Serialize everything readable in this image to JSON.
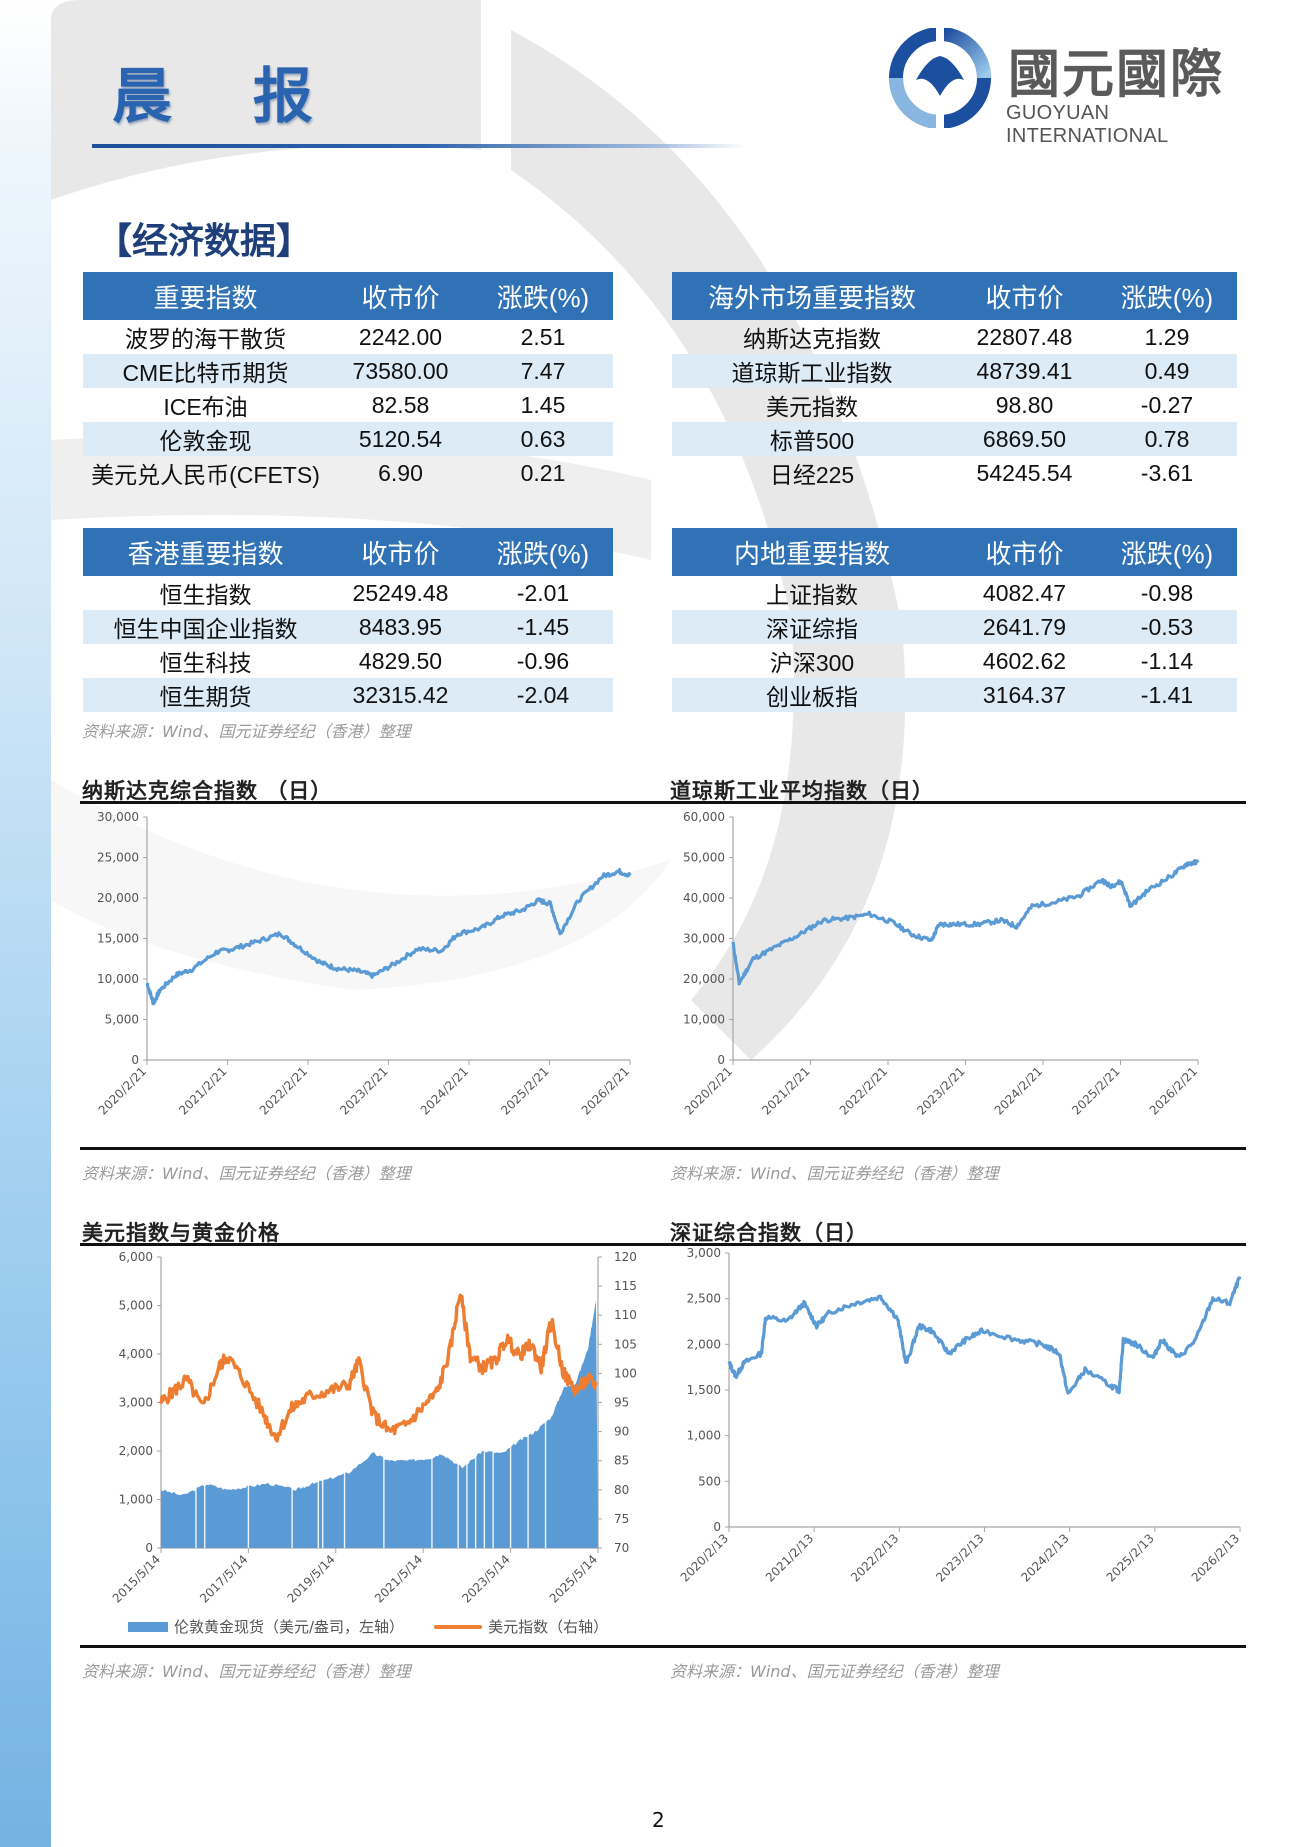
{
  "header": {
    "title": "晨 报",
    "logo_cn": "國元國際",
    "logo_en": "GUOYUAN INTERNATIONAL"
  },
  "section_title": "【经济数据】",
  "tables": {
    "key_indices": {
      "headers": [
        "重要指数",
        "收市价",
        "涨跌(%)"
      ],
      "rows": [
        [
          "波罗的海干散货",
          "2242.00",
          "2.51"
        ],
        [
          "CME比特币期货",
          "73580.00",
          "7.47"
        ],
        [
          "ICE布油",
          "82.58",
          "1.45"
        ],
        [
          "伦敦金现",
          "5120.54",
          "0.63"
        ],
        [
          "美元兑人民币(CFETS)",
          "6.90",
          "0.21"
        ]
      ]
    },
    "overseas": {
      "headers": [
        "海外市场重要指数",
        "收市价",
        "涨跌(%)"
      ],
      "rows": [
        [
          "纳斯达克指数",
          "22807.48",
          "1.29"
        ],
        [
          "道琼斯工业指数",
          "48739.41",
          "0.49"
        ],
        [
          "美元指数",
          "98.80",
          "-0.27"
        ],
        [
          "标普500",
          "6869.50",
          "0.78"
        ],
        [
          "日经225",
          "54245.54",
          "-3.61"
        ]
      ]
    },
    "hongkong": {
      "headers": [
        "香港重要指数",
        "收市价",
        "涨跌(%)"
      ],
      "rows": [
        [
          "恒生指数",
          "25249.48",
          "-2.01"
        ],
        [
          "恒生中国企业指数",
          "8483.95",
          "-1.45"
        ],
        [
          "恒生科技",
          "4829.50",
          "-0.96"
        ],
        [
          "恒生期货",
          "32315.42",
          "-2.04"
        ]
      ]
    },
    "mainland": {
      "headers": [
        "内地重要指数",
        "收市价",
        "涨跌(%)"
      ],
      "rows": [
        [
          "上证指数",
          "4082.47",
          "-0.98"
        ],
        [
          "深证综指",
          "2641.79",
          "-0.53"
        ],
        [
          "沪深300",
          "4602.62",
          "-1.14"
        ],
        [
          "创业板指",
          "3164.37",
          "-1.41"
        ]
      ]
    }
  },
  "source_note": "资料来源：Wind、国元证券经纪（香港）整理",
  "page_number": "2",
  "colors": {
    "table_header": "#3072b5",
    "table_alt_row": "#ddebf7",
    "line_blue": "#5b9bd5",
    "line_orange": "#ed7d31",
    "title_blue": "#2a64b0"
  },
  "chart_data": [
    {
      "type": "line",
      "title": "纳斯达克综合指数 （日）",
      "xlabel": "",
      "ylabel": "",
      "x_ticks": [
        "2020/2/21",
        "2021/2/21",
        "2022/2/21",
        "2023/2/21",
        "2024/2/21",
        "2025/2/21",
        "2026/2/21"
      ],
      "y_ticks": [
        "0",
        "5,000",
        "10,000",
        "15,000",
        "20,000",
        "25,000",
        "30,000"
      ],
      "ylim": [
        0,
        30000
      ],
      "grid": false,
      "series": [
        {
          "name": "纳斯达克综合指数",
          "color": "#5b9bd5",
          "x": [
            2020.14,
            2020.22,
            2020.3,
            2020.5,
            2020.7,
            2021.0,
            2021.2,
            2021.5,
            2021.8,
            2022.0,
            2022.3,
            2022.5,
            2022.75,
            2022.95,
            2023.2,
            2023.5,
            2023.8,
            2024.0,
            2024.3,
            2024.55,
            2024.8,
            2025.0,
            2025.15,
            2025.27,
            2025.5,
            2025.8,
            2026.0,
            2026.14
          ],
          "values": [
            9500,
            7000,
            8600,
            10500,
            11200,
            13300,
            13700,
            14600,
            15600,
            14100,
            12000,
            11300,
            11000,
            10400,
            11800,
            13700,
            13500,
            15600,
            16300,
            17800,
            18500,
            19700,
            19300,
            15600,
            19700,
            22700,
            23300,
            22800
          ]
        }
      ]
    },
    {
      "type": "line",
      "title": "道琼斯工业平均指数（日）",
      "xlabel": "",
      "ylabel": "",
      "x_ticks": [
        "2020/2/21",
        "2021/2/21",
        "2022/2/21",
        "2023/2/21",
        "2024/2/21",
        "2025/2/21",
        "2026/2/21"
      ],
      "y_ticks": [
        "0",
        "10,000",
        "20,000",
        "30,000",
        "40,000",
        "50,000",
        "60,000"
      ],
      "ylim": [
        0,
        60000
      ],
      "grid": false,
      "series": [
        {
          "name": "道琼斯工业平均指数",
          "color": "#5b9bd5",
          "x": [
            2020.14,
            2020.22,
            2020.4,
            2020.7,
            2021.0,
            2021.3,
            2021.6,
            2021.9,
            2022.2,
            2022.45,
            2022.7,
            2022.8,
            2023.0,
            2023.3,
            2023.6,
            2023.8,
            2024.0,
            2024.3,
            2024.6,
            2024.9,
            2025.0,
            2025.15,
            2025.27,
            2025.5,
            2025.8,
            2026.0,
            2026.14
          ],
          "values": [
            29000,
            19000,
            25000,
            28000,
            31000,
            34500,
            35000,
            36000,
            34000,
            31000,
            29500,
            33500,
            33500,
            33500,
            34500,
            33000,
            38000,
            39000,
            40500,
            44500,
            43000,
            44000,
            38000,
            42000,
            45500,
            48500,
            48800
          ]
        }
      ]
    },
    {
      "type": "area",
      "title": "美元指数与黄金价格",
      "xlabel": "",
      "ylabel": "",
      "x_ticks": [
        "2015/5/14",
        "2017/5/14",
        "2019/5/14",
        "2021/5/14",
        "2023/5/14",
        "2025/5/14"
      ],
      "y_ticks_left": [
        "0",
        "1,000",
        "2,000",
        "3,000",
        "4,000",
        "5,000",
        "6,000"
      ],
      "y_ticks_right": [
        "70",
        "75",
        "80",
        "85",
        "90",
        "95",
        "100",
        "105",
        "110",
        "115",
        "120"
      ],
      "ylim_left": [
        0,
        6000
      ],
      "ylim_right": [
        70,
        120
      ],
      "legend": [
        "伦敦黄金现货（美元/盎司，左轴）",
        "美元指数（右轴）"
      ],
      "legend_position": "bottom",
      "series": [
        {
          "name": "伦敦黄金现货（美元/盎司，左轴）",
          "axis": "left",
          "type": "area",
          "color": "#5b9bd5",
          "x": [
            2015.37,
            2015.9,
            2016.5,
            2017.0,
            2017.5,
            2018.0,
            2018.7,
            2019.0,
            2019.5,
            2020.0,
            2020.6,
            2021.0,
            2021.5,
            2022.0,
            2022.3,
            2022.8,
            2023.3,
            2023.8,
            2024.2,
            2024.6,
            2025.0,
            2025.3,
            2025.6,
            2025.9,
            2026.1
          ],
          "values": [
            1200,
            1080,
            1320,
            1200,
            1260,
            1330,
            1200,
            1290,
            1420,
            1550,
            1950,
            1800,
            1800,
            1850,
            1950,
            1650,
            2000,
            1950,
            2200,
            2400,
            2700,
            3300,
            3400,
            4100,
            5100
          ]
        },
        {
          "name": "美元指数（右轴）",
          "axis": "right",
          "type": "line",
          "color": "#ed7d31",
          "x": [
            2015.37,
            2015.7,
            2016.0,
            2016.4,
            2016.8,
            2017.0,
            2017.4,
            2017.9,
            2018.2,
            2018.6,
            2019.0,
            2019.5,
            2020.0,
            2020.25,
            2020.6,
            2021.0,
            2021.4,
            2021.8,
            2022.2,
            2022.5,
            2022.75,
            2023.0,
            2023.3,
            2023.6,
            2023.9,
            2024.2,
            2024.5,
            2024.75,
            2025.0,
            2025.3,
            2025.6,
            2025.9,
            2026.1
          ],
          "values": [
            95,
            97,
            99,
            94,
            101,
            103,
            99,
            93,
            89,
            94,
            96,
            97,
            98,
            102,
            93,
            90,
            91,
            94,
            97,
            104,
            114,
            103,
            101,
            102,
            106,
            103,
            105,
            101,
            109,
            100,
            97,
            99,
            98
          ]
        }
      ]
    },
    {
      "type": "line",
      "title": "深证综合指数（日）",
      "xlabel": "",
      "ylabel": "",
      "x_ticks": [
        "2020/2/13",
        "2021/2/13",
        "2022/2/13",
        "2023/2/13",
        "2024/2/13",
        "2025/2/13",
        "2026/2/13"
      ],
      "y_ticks": [
        "0",
        "500",
        "1,000",
        "1,500",
        "2,000",
        "2,500",
        "3,000"
      ],
      "ylim": [
        0,
        3000
      ],
      "grid": false,
      "series": [
        {
          "name": "深证综合指数",
          "color": "#5b9bd5",
          "x": [
            2020.12,
            2020.2,
            2020.3,
            2020.5,
            2020.55,
            2020.8,
            2021.0,
            2021.15,
            2021.3,
            2021.6,
            2021.9,
            2022.1,
            2022.2,
            2022.35,
            2022.5,
            2022.7,
            2022.9,
            2023.1,
            2023.5,
            2023.8,
            2024.0,
            2024.1,
            2024.3,
            2024.6,
            2024.7,
            2024.75,
            2024.9,
            2025.1,
            2025.2,
            2025.4,
            2025.6,
            2025.8,
            2026.0,
            2026.12
          ],
          "values": [
            1800,
            1650,
            1800,
            1900,
            2300,
            2250,
            2450,
            2200,
            2350,
            2450,
            2520,
            2280,
            1780,
            2200,
            2150,
            1900,
            2050,
            2150,
            2050,
            2000,
            1900,
            1450,
            1720,
            1550,
            1490,
            2050,
            2000,
            1850,
            2050,
            1850,
            2050,
            2500,
            2450,
            2740
          ]
        }
      ]
    }
  ]
}
